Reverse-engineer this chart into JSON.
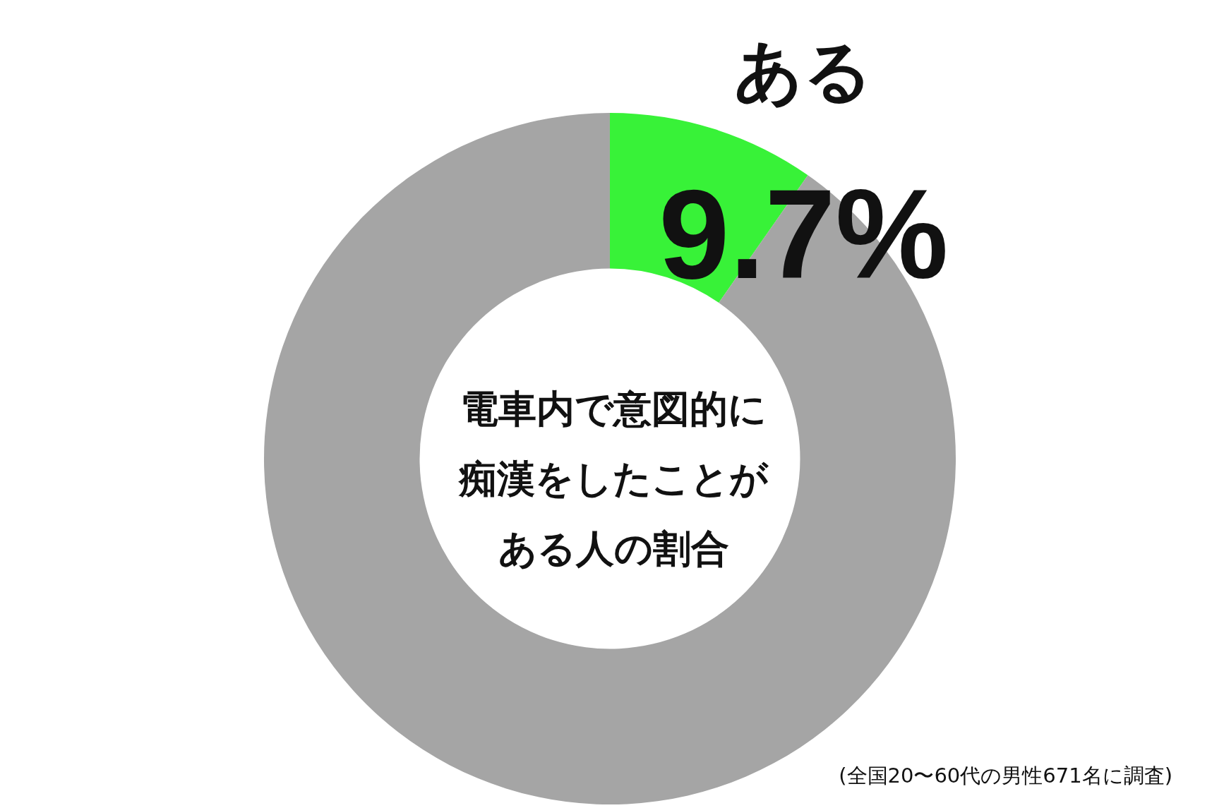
{
  "chart_data": {
    "type": "donut",
    "title": "電車内で意図的に痴漢をしたことがある人の割合",
    "categories": [
      "ある",
      null
    ],
    "values": [
      9.7,
      90.3
    ],
    "colors": [
      "#38f238",
      "#a5a5a5"
    ],
    "value_labels": [
      "9.7%",
      null
    ],
    "legend": false,
    "annotations": [
      "(全国20〜60代の男性671名に調査)"
    ]
  }
}
